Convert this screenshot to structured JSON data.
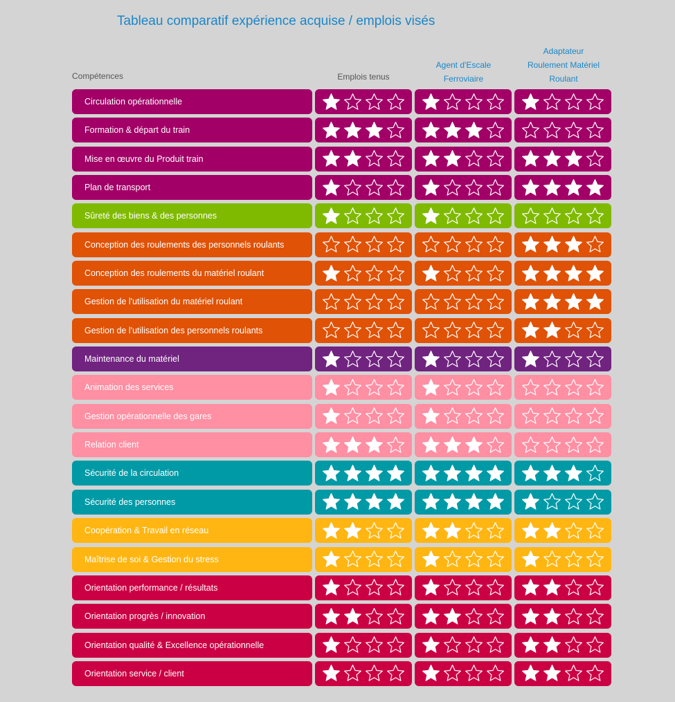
{
  "title": "Tableau comparatif expérience acquise / emplois visés",
  "headers": {
    "competences": "Compétences",
    "col1": "Emplois tenus",
    "col2": [
      "Agent d'Escale",
      "Ferroviaire"
    ],
    "col3": [
      "Adaptateur",
      "Roulement Matériel",
      "Roulant"
    ]
  },
  "max_stars": 4,
  "icons": {
    "rating": "star-icon"
  },
  "colors": {
    "magenta": "#a20067",
    "green": "#7fba00",
    "orange": "#e05206",
    "purple": "#70237f",
    "pink": "#ff8fa3",
    "teal": "#009aa6",
    "yellow": "#ffb612",
    "crimson": "#cb0044"
  },
  "rows": [
    {
      "label": "Circulation opérationnelle",
      "color": "magenta",
      "ratings": [
        1,
        1,
        1
      ]
    },
    {
      "label": "Formation & départ du train",
      "color": "magenta",
      "ratings": [
        3,
        3,
        0
      ]
    },
    {
      "label": "Mise en œuvre du Produit train",
      "color": "magenta",
      "ratings": [
        2,
        2,
        3
      ]
    },
    {
      "label": "Plan de transport",
      "color": "magenta",
      "ratings": [
        1,
        1,
        4
      ]
    },
    {
      "label": "Sûreté des biens & des personnes",
      "color": "green",
      "ratings": [
        1,
        1,
        0
      ]
    },
    {
      "label": "Conception des roulements des personnels roulants",
      "color": "orange",
      "ratings": [
        0,
        0,
        3
      ]
    },
    {
      "label": "Conception des roulements du matériel roulant",
      "color": "orange",
      "ratings": [
        1,
        1,
        4
      ]
    },
    {
      "label": "Gestion de l'utilisation du matériel roulant",
      "color": "orange",
      "ratings": [
        0,
        0,
        4
      ]
    },
    {
      "label": "Gestion de l'utilisation des personnels roulants",
      "color": "orange",
      "ratings": [
        0,
        0,
        2
      ]
    },
    {
      "label": "Maintenance du matériel",
      "color": "purple",
      "ratings": [
        1,
        1,
        1
      ]
    },
    {
      "label": "Animation des services",
      "color": "pink",
      "ratings": [
        1,
        1,
        0
      ]
    },
    {
      "label": "Gestion opérationnelle des gares",
      "color": "pink",
      "ratings": [
        1,
        1,
        0
      ]
    },
    {
      "label": "Relation client",
      "color": "pink",
      "ratings": [
        3,
        3,
        0
      ]
    },
    {
      "label": "Sécurité de la circulation",
      "color": "teal",
      "ratings": [
        4,
        4,
        3
      ]
    },
    {
      "label": "Sécurité des personnes",
      "color": "teal",
      "ratings": [
        4,
        4,
        1
      ]
    },
    {
      "label": "Coopération & Travail en réseau",
      "color": "yellow",
      "ratings": [
        2,
        2,
        2
      ]
    },
    {
      "label": "Maîtrise de soi & Gestion du stress",
      "color": "yellow",
      "ratings": [
        1,
        1,
        1
      ]
    },
    {
      "label": "Orientation performance / résultats",
      "color": "crimson",
      "ratings": [
        1,
        1,
        2
      ]
    },
    {
      "label": "Orientation progrès / innovation",
      "color": "crimson",
      "ratings": [
        2,
        2,
        2
      ]
    },
    {
      "label": "Orientation qualité & Excellence opérationnelle",
      "color": "crimson",
      "ratings": [
        1,
        1,
        2
      ]
    },
    {
      "label": "Orientation service / client",
      "color": "crimson",
      "ratings": [
        1,
        1,
        2
      ]
    }
  ]
}
